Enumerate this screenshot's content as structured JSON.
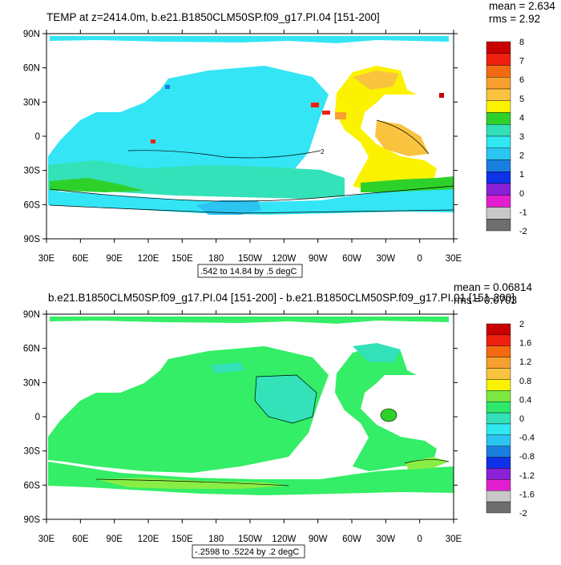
{
  "panel1": {
    "title": "TEMP at z=2414.0m, b.e21.B1850CLM50SP.f09_g17.PI.04 [151-200]",
    "mean": "mean = 2.634",
    "rms": "rms = 2.92",
    "range_label": ".542 to 14.84 by .5 degC",
    "lat_labels": [
      "90N",
      "60N",
      "30N",
      "0",
      "30S",
      "60S",
      "90S"
    ],
    "lon_labels": [
      "30E",
      "60E",
      "90E",
      "120E",
      "150E",
      "180",
      "150W",
      "120W",
      "90W",
      "60W",
      "30W",
      "0",
      "30E"
    ],
    "colorbar_labels": [
      "8",
      "7",
      "6",
      "5",
      "4",
      "3",
      "2",
      "1",
      "0",
      "-1",
      "-2"
    ],
    "colorbar_colors": [
      "#c80000",
      "#f02010",
      "#f46a10",
      "#f7a030",
      "#f9c340",
      "#fbf200",
      "#2ed12a",
      "#33e0b8",
      "#30e8f2",
      "#2cc4f0",
      "#1a7ee0",
      "#0d32e8",
      "#8a20d8",
      "#e21ed0",
      "#c8c8c8",
      "#6e6e6e"
    ],
    "contour_label": "2"
  },
  "panel2": {
    "title": "b.e21.B1850CLM50SP.f09_g17.PI.04 [151-200] - b.e21.B1850CLM50SP.f09_g17.PI.01 [151-200]",
    "mean": "mean = 0.06814",
    "rms": "rms = 0.0703",
    "range_label": "-.2598 to .5224 by .2 degC",
    "lat_labels": [
      "90N",
      "60N",
      "30N",
      "0",
      "30S",
      "60S",
      "90S"
    ],
    "lon_labels": [
      "30E",
      "60E",
      "90E",
      "120E",
      "150E",
      "180",
      "150W",
      "120W",
      "90W",
      "60W",
      "30W",
      "0",
      "30E"
    ],
    "colorbar_labels": [
      "2",
      "1.6",
      "1.2",
      "0.8",
      "0.4",
      "0",
      "-0.4",
      "-0.8",
      "-1.2",
      "-1.6",
      "-2"
    ],
    "colorbar_colors": [
      "#c80000",
      "#f02010",
      "#f46a10",
      "#f7a030",
      "#f9c340",
      "#fbf200",
      "#7ee840",
      "#2ee86a",
      "#33e0b8",
      "#30e8f2",
      "#2cc4f0",
      "#1a7ee0",
      "#0d32e8",
      "#8a20d8",
      "#e21ed0",
      "#c8c8c8",
      "#6e6e6e"
    ]
  },
  "colors": {
    "ocean_cyan": "#33e5f5",
    "ocean_teal": "#33e2b8",
    "atlantic_yellow": "#fbf200",
    "atlantic_gold": "#f9c340",
    "diff_green": "#33ee66",
    "diff_lightgreen": "#88ee44"
  }
}
